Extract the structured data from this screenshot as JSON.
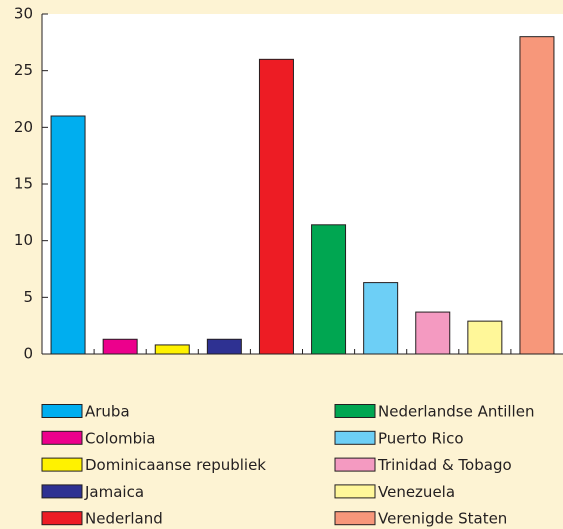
{
  "chart_data": {
    "type": "bar",
    "categories": [
      "Aruba",
      "Colombia",
      "Dominicaanse republiek",
      "Jamaica",
      "Nederland",
      "Nederlandse Antillen",
      "Puerto Rico",
      "Trinidad & Tobago",
      "Venezuela",
      "Verenigde Staten"
    ],
    "values": [
      21,
      1.3,
      0.8,
      1.3,
      26,
      11.4,
      6.3,
      3.7,
      2.9,
      28
    ],
    "colors": [
      "#00aeef",
      "#ec008c",
      "#fff200",
      "#2e3192",
      "#ed1c24",
      "#00a651",
      "#6dcff6",
      "#f49ac1",
      "#fff799",
      "#f7977a"
    ],
    "ylim": [
      0,
      30
    ],
    "yticks": [
      0,
      5,
      10,
      15,
      20,
      25,
      30
    ],
    "legend": "bottom"
  }
}
